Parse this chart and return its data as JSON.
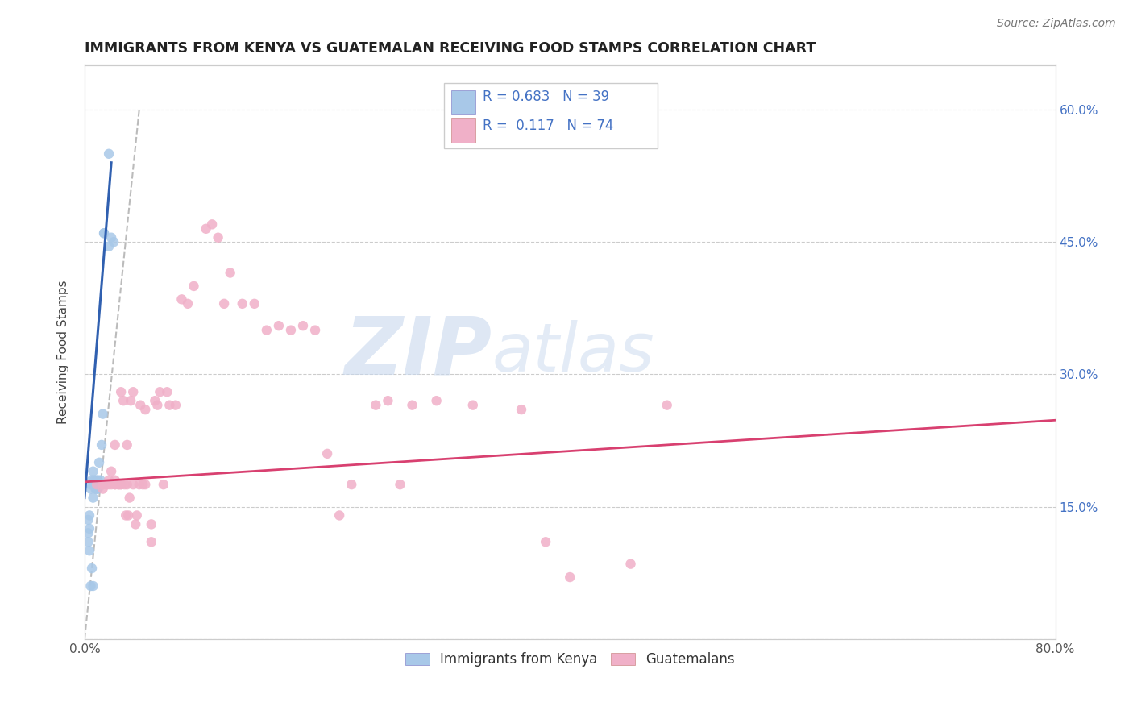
{
  "title": "IMMIGRANTS FROM KENYA VS GUATEMALAN RECEIVING FOOD STAMPS CORRELATION CHART",
  "source_text": "Source: ZipAtlas.com",
  "ylabel": "Receiving Food Stamps",
  "xlim": [
    0.0,
    0.8
  ],
  "ylim": [
    0.0,
    0.65
  ],
  "xticks": [
    0.0,
    0.2,
    0.4,
    0.6,
    0.8
  ],
  "xticklabels": [
    "0.0%",
    "",
    "",
    "",
    "80.0%"
  ],
  "yticks": [
    0.0,
    0.15,
    0.3,
    0.45,
    0.6
  ],
  "yticklabels_left": [
    "",
    "",
    "",
    "",
    ""
  ],
  "yticklabels_right": [
    "",
    "15.0%",
    "30.0%",
    "45.0%",
    "60.0%"
  ],
  "R_kenya": 0.683,
  "N_kenya": 39,
  "R_guatemalan": 0.117,
  "N_guatemalan": 74,
  "kenya_color": "#a8c8e8",
  "guatemalan_color": "#f0b0c8",
  "kenya_line_color": "#3060b0",
  "guatemalan_line_color": "#d84070",
  "kenya_scatter": [
    [
      0.005,
      0.175
    ],
    [
      0.005,
      0.17
    ],
    [
      0.006,
      0.18
    ],
    [
      0.007,
      0.16
    ],
    [
      0.007,
      0.19
    ],
    [
      0.008,
      0.175
    ],
    [
      0.008,
      0.18
    ],
    [
      0.009,
      0.17
    ],
    [
      0.009,
      0.175
    ],
    [
      0.01,
      0.17
    ],
    [
      0.01,
      0.18
    ],
    [
      0.01,
      0.175
    ],
    [
      0.011,
      0.175
    ],
    [
      0.011,
      0.17
    ],
    [
      0.011,
      0.18
    ],
    [
      0.012,
      0.175
    ],
    [
      0.012,
      0.2
    ],
    [
      0.013,
      0.175
    ],
    [
      0.013,
      0.175
    ],
    [
      0.013,
      0.18
    ],
    [
      0.014,
      0.175
    ],
    [
      0.014,
      0.22
    ],
    [
      0.015,
      0.175
    ],
    [
      0.015,
      0.255
    ],
    [
      0.016,
      0.46
    ],
    [
      0.016,
      0.46
    ],
    [
      0.02,
      0.445
    ],
    [
      0.022,
      0.455
    ],
    [
      0.024,
      0.45
    ],
    [
      0.003,
      0.135
    ],
    [
      0.004,
      0.125
    ],
    [
      0.004,
      0.14
    ],
    [
      0.003,
      0.11
    ],
    [
      0.003,
      0.12
    ],
    [
      0.004,
      0.1
    ],
    [
      0.005,
      0.06
    ],
    [
      0.006,
      0.08
    ],
    [
      0.02,
      0.55
    ],
    [
      0.007,
      0.06
    ]
  ],
  "guatemalan_scatter": [
    [
      0.01,
      0.175
    ],
    [
      0.015,
      0.175
    ],
    [
      0.015,
      0.17
    ],
    [
      0.015,
      0.175
    ],
    [
      0.018,
      0.175
    ],
    [
      0.018,
      0.175
    ],
    [
      0.02,
      0.175
    ],
    [
      0.02,
      0.18
    ],
    [
      0.022,
      0.175
    ],
    [
      0.022,
      0.19
    ],
    [
      0.025,
      0.175
    ],
    [
      0.025,
      0.18
    ],
    [
      0.025,
      0.22
    ],
    [
      0.025,
      0.175
    ],
    [
      0.028,
      0.175
    ],
    [
      0.028,
      0.175
    ],
    [
      0.03,
      0.28
    ],
    [
      0.03,
      0.175
    ],
    [
      0.03,
      0.175
    ],
    [
      0.032,
      0.27
    ],
    [
      0.033,
      0.175
    ],
    [
      0.034,
      0.14
    ],
    [
      0.035,
      0.22
    ],
    [
      0.035,
      0.175
    ],
    [
      0.036,
      0.14
    ],
    [
      0.037,
      0.16
    ],
    [
      0.038,
      0.27
    ],
    [
      0.04,
      0.28
    ],
    [
      0.04,
      0.175
    ],
    [
      0.042,
      0.13
    ],
    [
      0.043,
      0.14
    ],
    [
      0.045,
      0.175
    ],
    [
      0.046,
      0.265
    ],
    [
      0.048,
      0.175
    ],
    [
      0.05,
      0.26
    ],
    [
      0.05,
      0.175
    ],
    [
      0.055,
      0.13
    ],
    [
      0.055,
      0.11
    ],
    [
      0.058,
      0.27
    ],
    [
      0.06,
      0.265
    ],
    [
      0.062,
      0.28
    ],
    [
      0.065,
      0.175
    ],
    [
      0.068,
      0.28
    ],
    [
      0.07,
      0.265
    ],
    [
      0.075,
      0.265
    ],
    [
      0.08,
      0.385
    ],
    [
      0.085,
      0.38
    ],
    [
      0.09,
      0.4
    ],
    [
      0.1,
      0.465
    ],
    [
      0.105,
      0.47
    ],
    [
      0.11,
      0.455
    ],
    [
      0.115,
      0.38
    ],
    [
      0.12,
      0.415
    ],
    [
      0.13,
      0.38
    ],
    [
      0.14,
      0.38
    ],
    [
      0.15,
      0.35
    ],
    [
      0.16,
      0.355
    ],
    [
      0.17,
      0.35
    ],
    [
      0.18,
      0.355
    ],
    [
      0.19,
      0.35
    ],
    [
      0.2,
      0.21
    ],
    [
      0.21,
      0.14
    ],
    [
      0.22,
      0.175
    ],
    [
      0.24,
      0.265
    ],
    [
      0.25,
      0.27
    ],
    [
      0.26,
      0.175
    ],
    [
      0.27,
      0.265
    ],
    [
      0.29,
      0.27
    ],
    [
      0.32,
      0.265
    ],
    [
      0.36,
      0.26
    ],
    [
      0.38,
      0.11
    ],
    [
      0.4,
      0.07
    ],
    [
      0.45,
      0.085
    ],
    [
      0.48,
      0.265
    ]
  ],
  "watermark_zip": "ZIP",
  "watermark_atlas": "atlas",
  "background_color": "#ffffff",
  "grid_color": "#cccccc",
  "legend_kenya_label": "Immigrants from Kenya",
  "legend_guatemalan_label": "Guatemalans",
  "diag_line_color": "#bbbbbb",
  "title_color": "#222222",
  "right_tick_color": "#4472C4",
  "source_color": "#777777"
}
